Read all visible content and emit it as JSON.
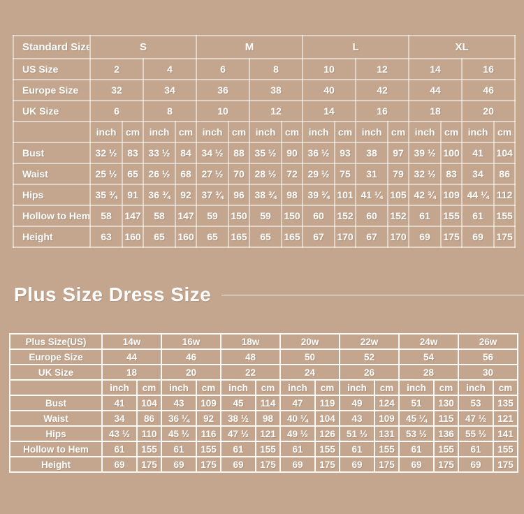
{
  "colors": {
    "background": "#c4a68f",
    "text": "#ffffff",
    "grid_soft": "rgba(255,255,255,0.5)",
    "grid_bright": "rgba(255,255,255,0.92)"
  },
  "standard_table": {
    "corner_label": "Standard Size",
    "groups": [
      "S",
      "M",
      "L",
      "XL"
    ],
    "size_rows": [
      {
        "label": "US Size",
        "values": [
          "2",
          "4",
          "6",
          "8",
          "10",
          "12",
          "14",
          "16"
        ]
      },
      {
        "label": "Europe Size",
        "values": [
          "32",
          "34",
          "36",
          "38",
          "40",
          "42",
          "44",
          "46"
        ]
      },
      {
        "label": "UK Size",
        "values": [
          "6",
          "8",
          "10",
          "12",
          "14",
          "16",
          "18",
          "20"
        ]
      }
    ],
    "units": [
      "inch",
      "cm"
    ],
    "measure_rows": [
      {
        "label": "Bust",
        "values": [
          "32 ½",
          "83",
          "33 ½",
          "84",
          "34 ½",
          "88",
          "35 ½",
          "90",
          "36 ½",
          "93",
          "38",
          "97",
          "39 ½",
          "100",
          "41",
          "104"
        ]
      },
      {
        "label": "Waist",
        "values": [
          "25 ½",
          "65",
          "26 ½",
          "68",
          "27 ½",
          "70",
          "28 ½",
          "72",
          "29 ½",
          "75",
          "31",
          "79",
          "32 ½",
          "83",
          "34",
          "86"
        ]
      },
      {
        "label": "Hips",
        "values": [
          "35 ¾",
          "91",
          "36 ¾",
          "92",
          "37 ¾",
          "96",
          "38 ¾",
          "98",
          "39 ¾",
          "101",
          "41 ¼",
          "105",
          "42 ¾",
          "109",
          "44 ¼",
          "112"
        ]
      },
      {
        "label": "Hollow to Hem",
        "values": [
          "58",
          "147",
          "58",
          "147",
          "59",
          "150",
          "59",
          "150",
          "60",
          "152",
          "60",
          "152",
          "61",
          "155",
          "61",
          "155"
        ]
      },
      {
        "label": "Height",
        "values": [
          "63",
          "160",
          "65",
          "160",
          "65",
          "165",
          "65",
          "165",
          "67",
          "170",
          "67",
          "170",
          "69",
          "175",
          "69",
          "175"
        ]
      }
    ]
  },
  "plus_heading": "Plus Size Dress Size",
  "plus_table": {
    "size_rows": [
      {
        "label": "Plus Size(US)",
        "values": [
          "14w",
          "16w",
          "18w",
          "20w",
          "22w",
          "24w",
          "26w"
        ]
      },
      {
        "label": "Europe Size",
        "values": [
          "44",
          "46",
          "48",
          "50",
          "52",
          "54",
          "56"
        ]
      },
      {
        "label": "UK Size",
        "values": [
          "18",
          "20",
          "22",
          "24",
          "26",
          "28",
          "30"
        ]
      }
    ],
    "units": [
      "inch",
      "cm"
    ],
    "measure_rows": [
      {
        "label": "Bust",
        "values": [
          "41",
          "104",
          "43",
          "109",
          "45",
          "114",
          "47",
          "119",
          "49",
          "124",
          "51",
          "130",
          "53",
          "135"
        ]
      },
      {
        "label": "Waist",
        "values": [
          "34",
          "86",
          "36 ¼",
          "92",
          "38 ½",
          "98",
          "40 ¼",
          "104",
          "43",
          "109",
          "45 ¼",
          "115",
          "47 ½",
          "121"
        ]
      },
      {
        "label": "Hips",
        "values": [
          "43 ½",
          "110",
          "45 ½",
          "116",
          "47 ½",
          "121",
          "49 ½",
          "126",
          "51 ½",
          "131",
          "53 ½",
          "136",
          "55 ½",
          "141"
        ]
      },
      {
        "label": "Hollow to Hem",
        "values": [
          "61",
          "155",
          "61",
          "155",
          "61",
          "155",
          "61",
          "155",
          "61",
          "155",
          "61",
          "155",
          "61",
          "155"
        ]
      },
      {
        "label": "Height",
        "values": [
          "69",
          "175",
          "69",
          "175",
          "69",
          "175",
          "69",
          "175",
          "69",
          "175",
          "69",
          "175",
          "69",
          "175"
        ]
      }
    ]
  }
}
